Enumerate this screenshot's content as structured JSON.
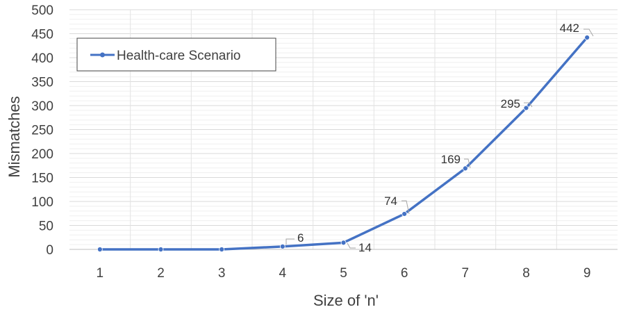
{
  "chart_data": {
    "type": "line",
    "xlabel": "Size of 'n'",
    "ylabel": "Mismatches",
    "x": [
      1,
      2,
      3,
      4,
      5,
      6,
      7,
      8,
      9
    ],
    "series": [
      {
        "name": "Health-care Scenario",
        "values": [
          0,
          0,
          0,
          6,
          14,
          74,
          169,
          295,
          442
        ],
        "color": "#4472C4"
      }
    ],
    "data_labels": [
      {
        "x": 4,
        "value": "6"
      },
      {
        "x": 5,
        "value": "14"
      },
      {
        "x": 6,
        "value": "74"
      },
      {
        "x": 7,
        "value": "169"
      },
      {
        "x": 8,
        "value": "295"
      },
      {
        "x": 9,
        "value": "442"
      }
    ],
    "ylim": [
      0,
      500
    ],
    "y_ticks": [
      0,
      50,
      100,
      150,
      200,
      250,
      300,
      350,
      400,
      450,
      500
    ],
    "x_ticks": [
      1,
      2,
      3,
      4,
      5,
      6,
      7,
      8,
      9
    ],
    "grid": true,
    "legend_position": "top-left"
  }
}
